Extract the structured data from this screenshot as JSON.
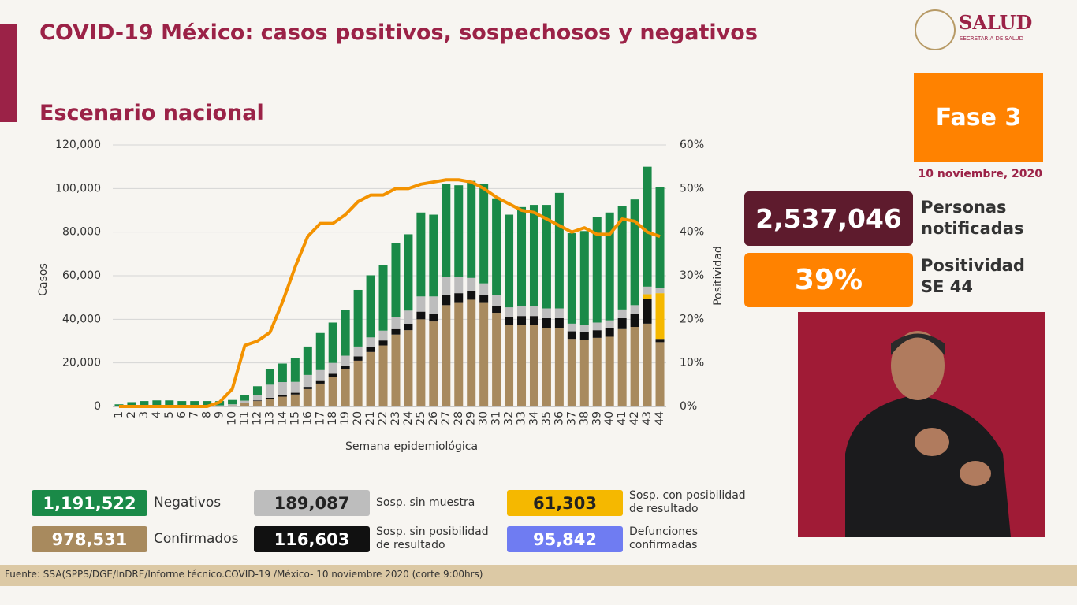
{
  "header": {
    "title": "COVID-19 México: casos positivos, sospechosos y negativos",
    "logo": "SALUD",
    "logo_sub": "SECRETARÍA DE SALUD"
  },
  "panel": {
    "phase": "Fase 3",
    "date": "10 noviembre, 2020",
    "notified": "2,537,046",
    "notified_label": "Personas notificadas",
    "positivity": "39%",
    "positivity_label": "Positividad SE 44"
  },
  "deaths": {
    "name": "Defunciones confirmadas",
    "total": "95,842",
    "color": "#6f7cf2"
  },
  "footer": "Fuente: SSA(SPPS/DGE/InDRE/Informe técnico.COVID-19 /México- 10 noviembre 2020 (corte 9:00hrs)",
  "chart_data": {
    "type": "stacked-bar-line",
    "title": "Escenario nacional",
    "x_label": "Semana epidemiológica",
    "y_label": "Casos",
    "y2_label": "Positividad",
    "categories": [
      "1",
      "2",
      "3",
      "4",
      "5",
      "6",
      "7",
      "8",
      "9",
      "10",
      "11",
      "12",
      "13",
      "14",
      "15",
      "16",
      "17",
      "18",
      "19",
      "20",
      "21",
      "22",
      "23",
      "24",
      "25",
      "26",
      "27",
      "28",
      "29",
      "30",
      "31",
      "32",
      "33",
      "34",
      "35",
      "36",
      "37",
      "38",
      "39",
      "40",
      "41",
      "42",
      "43",
      "44"
    ],
    "ylim": [
      0,
      120000
    ],
    "yticks": [
      {
        "value": 0,
        "label": "0"
      },
      {
        "value": 20000,
        "label": "20,000"
      },
      {
        "value": 40000,
        "label": "40,000"
      },
      {
        "value": 60000,
        "label": "60,000"
      },
      {
        "value": 80000,
        "label": "80,000"
      },
      {
        "value": 100000,
        "label": "100,000"
      },
      {
        "value": 120000,
        "label": "120,000"
      }
    ],
    "y2lim": [
      0,
      60
    ],
    "y2ticks": [
      {
        "value": 0,
        "label": "0%"
      },
      {
        "value": 10,
        "label": "10%"
      },
      {
        "value": 20,
        "label": "20%"
      },
      {
        "value": 30,
        "label": "30%"
      },
      {
        "value": 40,
        "label": "40%"
      },
      {
        "value": 50,
        "label": "50%"
      },
      {
        "value": 60,
        "label": "60%"
      }
    ],
    "grid": true,
    "series": [
      {
        "name": "Confirmados",
        "total": "978,531",
        "color": "#a88a5e",
        "values": [
          0,
          0,
          0,
          0,
          0,
          0,
          0,
          0,
          200,
          500,
          1500,
          2500,
          3500,
          4500,
          5500,
          8000,
          10500,
          13500,
          17000,
          21000,
          25000,
          28000,
          33000,
          35000,
          40000,
          39000,
          46500,
          47500,
          49000,
          47500,
          43000,
          37500,
          37500,
          37500,
          36000,
          36000,
          31000,
          30500,
          31500,
          32000,
          35500,
          36500,
          38000,
          29500
        ]
      },
      {
        "name": "Sosp. sin posibilidad de resultado",
        "total": "116,603",
        "color": "#111111",
        "values": [
          0,
          0,
          0,
          0,
          0,
          0,
          0,
          0,
          0,
          0,
          200,
          300,
          500,
          700,
          800,
          1000,
          1200,
          1500,
          1800,
          2000,
          2200,
          2300,
          2500,
          3000,
          3500,
          3500,
          4500,
          4500,
          4000,
          3500,
          3000,
          3500,
          4000,
          4000,
          4500,
          4500,
          3500,
          3500,
          3500,
          4000,
          5000,
          6000,
          11500,
          1500
        ]
      },
      {
        "name": "Sosp. con posibilidad de resultado",
        "total": "61,303",
        "color": "#f5b800",
        "values": [
          0,
          0,
          0,
          0,
          0,
          0,
          0,
          0,
          0,
          0,
          0,
          0,
          0,
          0,
          0,
          0,
          0,
          0,
          0,
          0,
          0,
          0,
          0,
          0,
          0,
          0,
          0,
          0,
          0,
          0,
          0,
          0,
          0,
          0,
          0,
          0,
          0,
          0,
          0,
          0,
          0,
          0,
          2000,
          21000
        ]
      },
      {
        "name": "Sosp. sin muestra",
        "total": "189,087",
        "color": "#bdbdbd",
        "values": [
          0,
          0,
          0,
          0,
          0,
          0,
          0,
          0,
          300,
          500,
          1000,
          2500,
          6000,
          6000,
          5000,
          5500,
          5000,
          5000,
          4500,
          4500,
          4500,
          4500,
          5500,
          6000,
          7000,
          8000,
          8500,
          7500,
          6000,
          5500,
          5000,
          4500,
          4500,
          4500,
          4500,
          4500,
          3500,
          3500,
          3500,
          3500,
          4000,
          4000,
          3500,
          2500
        ]
      },
      {
        "name": "Negativos",
        "total": "1,191,522",
        "color": "#1a8a48",
        "values": [
          1000,
          2000,
          2500,
          2800,
          2800,
          2500,
          2500,
          2500,
          2000,
          2000,
          2500,
          4000,
          7000,
          8500,
          11000,
          13000,
          17000,
          18500,
          21000,
          26000,
          28500,
          30000,
          34000,
          35000,
          38500,
          37500,
          42500,
          42000,
          44500,
          45500,
          44500,
          42500,
          45500,
          46500,
          47500,
          53000,
          41500,
          43000,
          48500,
          49500,
          47500,
          48500,
          55000,
          46000
        ]
      },
      {
        "name": "Positividad",
        "axis": "y2",
        "color": "#f39200",
        "values": [
          0,
          0,
          0,
          0,
          0,
          0,
          0,
          0,
          1,
          4,
          14,
          15,
          17,
          24,
          32,
          39,
          42,
          42,
          44,
          47,
          48.5,
          48.5,
          50,
          50,
          51,
          51.5,
          52,
          52,
          51.5,
          50,
          48,
          46.5,
          45,
          44.5,
          43,
          41.5,
          40,
          41,
          39.5,
          39.5,
          43,
          42.5,
          40,
          39
        ]
      }
    ]
  }
}
